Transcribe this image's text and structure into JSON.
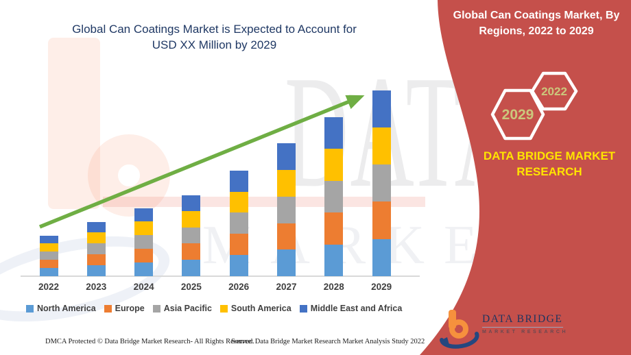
{
  "colors": {
    "accent": "#C5504B",
    "navy": "#1F3864",
    "brand_yellow": "#FFE400",
    "hex_label": "#CBC77C",
    "arrow_green": "#6FAE44",
    "axis": "#D9D9D9",
    "label_gray": "#3F3F3F"
  },
  "left_title": {
    "line1": "Global Can Coatings Market is Expected to Account for",
    "line2": "USD XX Million by 2029"
  },
  "right_panel": {
    "title_line1": "Global Can Coatings Market, By",
    "title_line2": "Regions, 2022 to 2029",
    "hexagon_big_label": "2029",
    "hexagon_small_label": "2022",
    "brand_text": "DATA BRIDGE MARKET RESEARCH"
  },
  "chart_data": {
    "type": "bar",
    "subtype": "stacked-column",
    "title": "Global Can Coatings Market, By Regions, 2022 to 2029",
    "categories": [
      "2022",
      "2023",
      "2024",
      "2025",
      "2026",
      "2027",
      "2028",
      "2029"
    ],
    "value_note": "Values masked in source as USD XX Million; series values are relative units estimated from bar pixel heights",
    "series": [
      {
        "name": "North America",
        "color": "#5B9BD5",
        "values": [
          12,
          16,
          20,
          24,
          31,
          39,
          46,
          54
        ]
      },
      {
        "name": "Europe",
        "color": "#ED7D31",
        "values": [
          12,
          16,
          20,
          24,
          31,
          38,
          47,
          55
        ]
      },
      {
        "name": "Asia Pacific",
        "color": "#A5A5A5",
        "values": [
          12,
          16,
          20,
          23,
          31,
          39,
          46,
          54
        ]
      },
      {
        "name": "South America",
        "color": "#FFC000",
        "values": [
          12,
          16,
          20,
          24,
          30,
          39,
          47,
          54
        ]
      },
      {
        "name": "Middle East and Africa",
        "color": "#4472C4",
        "values": [
          11,
          15,
          19,
          23,
          31,
          39,
          46,
          54
        ]
      }
    ],
    "totals": [
      59,
      79,
      99,
      118,
      154,
      194,
      232,
      271
    ],
    "value_axis_visible": false,
    "gridlines": false,
    "legend_position": "bottom",
    "trend_arrow": true
  },
  "footer": {
    "dmca": "DMCA Protected © Data Bridge Market Research- All Rights Reserved.",
    "source": "Source: Data Bridge Market Research Market Analysis Study 2022"
  },
  "logo": {
    "name": "DATA BRIDGE",
    "tagline": "MARKET RESEARCH"
  },
  "watermark": {
    "line1": "DATA BRIDGE",
    "line2": "MARKET RESEARCH"
  }
}
